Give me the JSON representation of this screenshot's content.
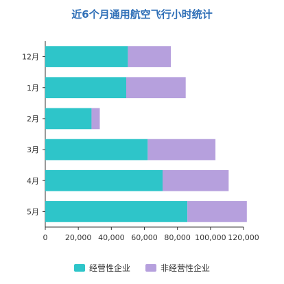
{
  "chart_data": {
    "type": "bar",
    "orientation": "horizontal",
    "stacked": true,
    "title": "近6个月通用航空飞行小时统计",
    "categories": [
      "12月",
      "1月",
      "2月",
      "3月",
      "4月",
      "5月"
    ],
    "series": [
      {
        "name": "经营性企业",
        "color": "#2ec5c9",
        "values": [
          50000,
          49000,
          28000,
          62000,
          71000,
          86000
        ]
      },
      {
        "name": "非经营性企业",
        "color": "#b6a0dd",
        "values": [
          26000,
          36000,
          5000,
          41000,
          40000,
          36000
        ]
      }
    ],
    "xlim": [
      0,
      120000
    ],
    "xticks": [
      "0",
      "20,000",
      "40,000",
      "60,000",
      "80,000",
      "100,000",
      "120,000"
    ],
    "xlabel": "",
    "ylabel": "",
    "grid": false,
    "legend_position": "bottom"
  }
}
